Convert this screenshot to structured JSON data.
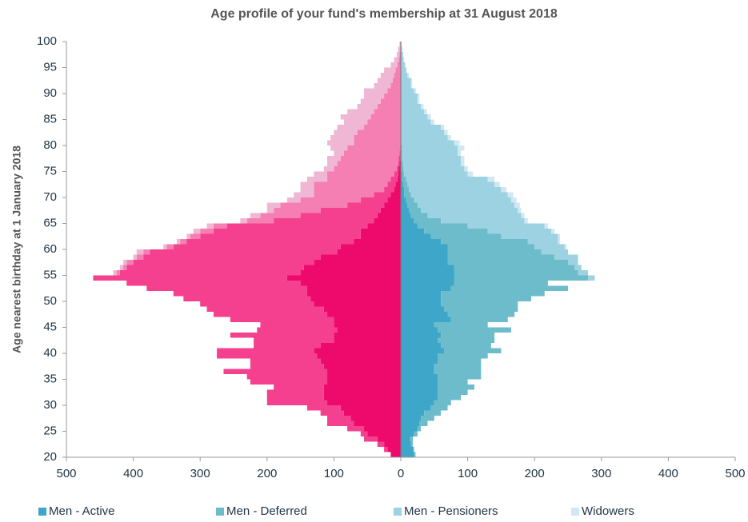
{
  "chart_data": {
    "type": "bar",
    "orientation": "horizontal",
    "stacked": true,
    "title": "Age profile of your fund's membership at 31 August 2018",
    "ylabel": "Age nearest birthday at 1 January 2018",
    "y": [
      20,
      21,
      22,
      23,
      24,
      25,
      26,
      27,
      28,
      29,
      30,
      31,
      32,
      33,
      34,
      35,
      36,
      37,
      38,
      39,
      40,
      41,
      42,
      43,
      44,
      45,
      46,
      47,
      48,
      49,
      50,
      51,
      52,
      53,
      54,
      55,
      56,
      57,
      58,
      59,
      60,
      61,
      62,
      63,
      64,
      65,
      66,
      67,
      68,
      69,
      70,
      71,
      72,
      73,
      74,
      75,
      76,
      77,
      78,
      79,
      80,
      81,
      82,
      83,
      84,
      85,
      86,
      87,
      88,
      89,
      90,
      91,
      92,
      93,
      94,
      95,
      96,
      97,
      98,
      99
    ],
    "ylim": [
      20,
      100
    ],
    "yticks": [
      20,
      25,
      30,
      35,
      40,
      45,
      50,
      55,
      60,
      65,
      70,
      75,
      80,
      85,
      90,
      95,
      100
    ],
    "xlim": [
      -500,
      500
    ],
    "xticks": [
      {
        "value": -500,
        "label": "500"
      },
      {
        "value": -400,
        "label": "400"
      },
      {
        "value": -300,
        "label": "300"
      },
      {
        "value": -200,
        "label": "200"
      },
      {
        "value": -100,
        "label": "100"
      },
      0,
      100,
      200,
      300,
      400,
      500
    ],
    "series": [
      {
        "name": "Men - Active",
        "color": "#3ea6c9",
        "values": [
          20,
          18,
          15,
          14,
          20,
          25,
          28,
          30,
          35,
          45,
          50,
          55,
          55,
          55,
          55,
          55,
          50,
          50,
          55,
          55,
          65,
          60,
          55,
          60,
          55,
          50,
          75,
          70,
          65,
          60,
          60,
          60,
          75,
          80,
          80,
          80,
          80,
          70,
          70,
          70,
          70,
          60,
          45,
          35,
          25,
          20,
          15,
          12,
          10,
          8,
          5,
          5,
          3,
          2,
          2,
          1,
          1,
          0,
          0,
          0,
          0,
          0,
          0,
          0,
          0,
          0,
          0,
          0,
          0,
          0,
          0,
          0,
          0,
          0,
          0,
          0,
          0,
          0,
          0,
          0
        ]
      },
      {
        "name": "Men - Deferred",
        "color": "#6cbccb",
        "values": [
          2,
          2,
          3,
          4,
          5,
          5,
          12,
          20,
          25,
          25,
          25,
          35,
          45,
          55,
          45,
          65,
          70,
          70,
          65,
          75,
          85,
          75,
          85,
          80,
          110,
          80,
          85,
          100,
          110,
          115,
          135,
          155,
          175,
          140,
          200,
          185,
          180,
          180,
          160,
          140,
          130,
          130,
          105,
          95,
          75,
          40,
          25,
          18,
          15,
          12,
          10,
          7,
          7,
          6,
          3,
          3,
          2,
          2,
          2,
          2,
          1,
          1,
          1,
          1,
          0,
          0,
          0,
          0,
          0,
          0,
          0,
          0,
          0,
          0,
          0,
          0,
          0,
          0,
          0,
          0
        ]
      },
      {
        "name": "Men - Pensioners",
        "color": "#9dd2e2",
        "values": [
          0,
          0,
          0,
          0,
          0,
          0,
          0,
          0,
          0,
          0,
          0,
          0,
          0,
          0,
          0,
          0,
          0,
          0,
          0,
          0,
          0,
          0,
          0,
          0,
          0,
          0,
          0,
          0,
          0,
          0,
          0,
          0,
          0,
          0,
          10,
          15,
          10,
          15,
          35,
          40,
          45,
          45,
          85,
          95,
          115,
          125,
          140,
          145,
          145,
          145,
          145,
          138,
          130,
          122,
          95,
          91,
          87,
          88,
          83,
          83,
          79,
          69,
          64,
          59,
          45,
          40,
          35,
          30,
          25,
          25,
          20,
          15,
          15,
          10,
          8,
          6,
          4,
          3,
          2,
          1
        ]
      },
      {
        "name": "Widowers",
        "color": "#cfe8f1",
        "values": [
          0,
          0,
          0,
          0,
          0,
          0,
          0,
          0,
          0,
          0,
          0,
          0,
          0,
          0,
          0,
          0,
          0,
          0,
          0,
          0,
          0,
          0,
          0,
          0,
          0,
          0,
          0,
          0,
          0,
          0,
          0,
          0,
          0,
          0,
          0,
          0,
          0,
          0,
          0,
          0,
          3,
          3,
          3,
          5,
          5,
          5,
          5,
          5,
          8,
          8,
          8,
          8,
          8,
          10,
          8,
          5,
          5,
          5,
          5,
          10,
          8,
          5,
          5,
          5,
          5,
          5,
          4,
          4,
          3,
          3,
          3,
          2,
          2,
          2,
          1,
          1,
          1,
          1,
          0,
          0
        ]
      },
      {
        "color": "#ee0a6c",
        "values": [
          -15,
          -20,
          -25,
          -35,
          -50,
          -55,
          -70,
          -75,
          -85,
          -90,
          -110,
          -115,
          -115,
          -115,
          -110,
          -110,
          -110,
          -115,
          -120,
          -125,
          -130,
          -120,
          -100,
          -100,
          -95,
          -100,
          -100,
          -110,
          -115,
          -130,
          -135,
          -140,
          -140,
          -150,
          -170,
          -150,
          -145,
          -130,
          -120,
          -95,
          -90,
          -70,
          -60,
          -60,
          -50,
          -40,
          -35,
          -30,
          -25,
          -20,
          -15,
          -10,
          -8,
          -5,
          -4,
          -3,
          -2,
          -1,
          -1,
          0,
          0,
          0,
          0,
          0,
          0,
          0,
          0,
          0,
          0,
          0,
          0,
          0,
          0,
          0,
          0,
          0,
          0,
          0,
          0,
          0
        ]
      },
      {
        "color": "#f4408e",
        "values": [
          0,
          -5,
          -10,
          -20,
          -10,
          -25,
          -40,
          -35,
          -35,
          -50,
          -90,
          -85,
          -85,
          -75,
          -115,
          -120,
          -155,
          -110,
          -105,
          -150,
          -145,
          -100,
          -120,
          -155,
          -120,
          -110,
          -155,
          -170,
          -175,
          -170,
          -190,
          -200,
          -240,
          -260,
          -290,
          -270,
          -265,
          -270,
          -265,
          -280,
          -250,
          -250,
          -240,
          -220,
          -210,
          -150,
          -115,
          -90,
          -55,
          -40,
          -25,
          -15,
          -12,
          -10,
          -6,
          -3,
          -2,
          -2,
          -1,
          -1,
          -1,
          0,
          0,
          0,
          0,
          0,
          0,
          0,
          0,
          0,
          0,
          0,
          0,
          0,
          0,
          0,
          0,
          0,
          0,
          0
        ]
      },
      {
        "color": "#f57fb3",
        "values": [
          0,
          0,
          0,
          0,
          0,
          0,
          0,
          0,
          0,
          0,
          0,
          0,
          0,
          0,
          0,
          0,
          0,
          0,
          0,
          0,
          0,
          0,
          0,
          0,
          0,
          0,
          0,
          0,
          0,
          0,
          0,
          0,
          0,
          0,
          0,
          -5,
          -5,
          -10,
          -10,
          -10,
          -10,
          -10,
          -15,
          -20,
          -20,
          -40,
          -60,
          -70,
          -100,
          -90,
          -90,
          -105,
          -110,
          -95,
          -100,
          -94,
          -91,
          -87,
          -83,
          -79,
          -69,
          -70,
          -65,
          -55,
          -50,
          -45,
          -40,
          -35,
          -30,
          -25,
          -20,
          -15,
          -12,
          -10,
          -8,
          -5,
          -3,
          -2,
          -1,
          -1
        ]
      },
      {
        "color": "#efb7d3",
        "values": [
          0,
          0,
          0,
          0,
          0,
          0,
          0,
          0,
          0,
          0,
          0,
          0,
          0,
          0,
          0,
          0,
          0,
          0,
          0,
          0,
          0,
          0,
          0,
          0,
          0,
          0,
          0,
          0,
          0,
          0,
          0,
          0,
          0,
          0,
          0,
          -5,
          -5,
          -5,
          -5,
          -10,
          -5,
          -5,
          -5,
          -10,
          -10,
          -10,
          -15,
          -10,
          -20,
          -20,
          -30,
          -20,
          -20,
          -30,
          -20,
          -15,
          -15,
          -20,
          -15,
          -25,
          -40,
          -35,
          -35,
          -40,
          -35,
          -45,
          -40,
          -30,
          -30,
          -30,
          -35,
          -25,
          -23,
          -20,
          -17,
          -10,
          -7,
          -4,
          -3,
          -1
        ]
      }
    ]
  }
}
